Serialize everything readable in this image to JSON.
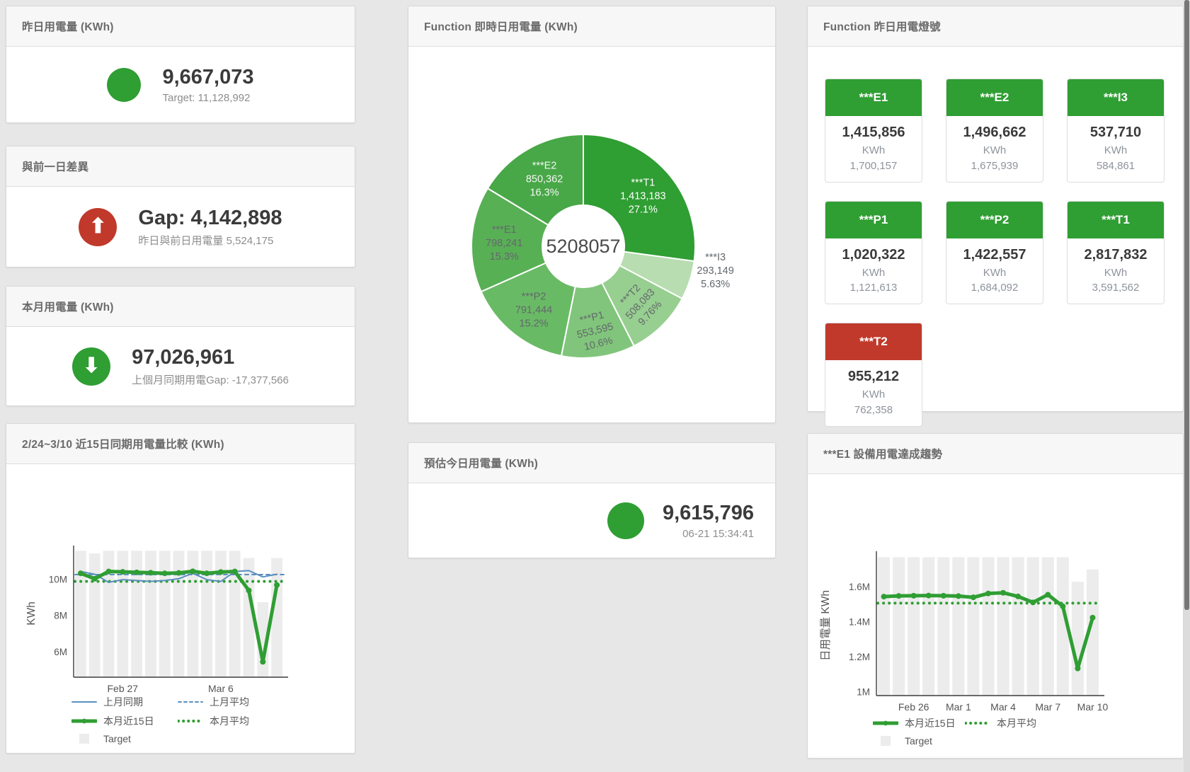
{
  "page": {
    "background": "#e7e7e7",
    "accent_green": "#2f9e33",
    "accent_red": "#c0392b",
    "accent_blue": "#5a8fc0",
    "target_bar_color": "#ececec"
  },
  "panels": {
    "yesterday": {
      "title": "昨日用電量 (KWh)",
      "value": "9,667,073",
      "subtitle": "Target: 11,128,992",
      "indicator_color": "#2f9e33"
    },
    "day_gap": {
      "title": "與前一日差異",
      "value": "Gap: 4,142,898",
      "subtitle": "昨日與前日用電量 5,524,175",
      "indicator_color": "#c0392b",
      "arrow_icon": "⬆"
    },
    "month": {
      "title": "本月用電量 (KWh)",
      "value": "97,026,961",
      "subtitle": "上個月同期用電Gap: -17,377,566",
      "indicator_color": "#2f9e33",
      "arrow_icon": "⬇"
    },
    "estimate": {
      "title": "預估今日用電量 (KWh)",
      "value": "9,615,796",
      "subtitle": "06-21 15:34:41",
      "indicator_color": "#2f9e33"
    },
    "lights": {
      "title": "Function 昨日用電燈號",
      "unit": "KWh",
      "tiles": [
        {
          "name": "***E1",
          "value": "1,415,856",
          "target": "1,700,157",
          "status_color": "#2f9e33"
        },
        {
          "name": "***E2",
          "value": "1,496,662",
          "target": "1,675,939",
          "status_color": "#2f9e33"
        },
        {
          "name": "***I3",
          "value": "537,710",
          "target": "584,861",
          "status_color": "#2f9e33"
        },
        {
          "name": "***P1",
          "value": "1,020,322",
          "target": "1,121,613",
          "status_color": "#2f9e33"
        },
        {
          "name": "***P2",
          "value": "1,422,557",
          "target": "1,684,092",
          "status_color": "#2f9e33"
        },
        {
          "name": "***T1",
          "value": "2,817,832",
          "target": "3,591,562",
          "status_color": "#2f9e33"
        },
        {
          "name": "***T2",
          "value": "955,212",
          "target": "762,358",
          "status_color": "#c0392b"
        }
      ]
    }
  },
  "chart_data": [
    {
      "id": "donut",
      "type": "pie",
      "title": "Function 即時日用電量 (KWh)",
      "center_label": "5208057",
      "slices": [
        {
          "name": "***T1",
          "value": 1413183,
          "value_text": "1,413,183",
          "percent": "27.1%",
          "color": "#2f9e33",
          "label_color": "#ffffff"
        },
        {
          "name": "***I3",
          "value": 293149,
          "value_text": "293,149",
          "percent": "5.63%",
          "color": "#b7ddb0",
          "label_color": "#63686c",
          "label_outside": true
        },
        {
          "name": "***T2",
          "value": 508083,
          "value_text": "508,083",
          "percent": "9.76%",
          "color": "#97cf90",
          "label_color": "#63686c",
          "label_rotate": -47
        },
        {
          "name": "***P1",
          "value": 553595,
          "value_text": "553,595",
          "percent": "10.6%",
          "color": "#80c57b",
          "label_color": "#63686c",
          "label_rotate": -14
        },
        {
          "name": "***P2",
          "value": 791444,
          "value_text": "791,444",
          "percent": "15.2%",
          "color": "#69ba65",
          "label_color": "#63686c"
        },
        {
          "name": "***E1",
          "value": 798241,
          "value_text": "798,241",
          "percent": "15.3%",
          "color": "#58b055",
          "label_color": "#63686c"
        },
        {
          "name": "***E2",
          "value": 850362,
          "value_text": "850,362",
          "percent": "16.3%",
          "color": "#48a747",
          "label_color": "#f4f7f4"
        }
      ]
    },
    {
      "id": "compare15",
      "type": "line",
      "title": "2/24~3/10 近15日同期用電量比較 (KWh)",
      "ylabel": "KWh",
      "categories": [
        "2/24",
        "2/25",
        "2/26",
        "2/27",
        "2/28",
        "3/1",
        "3/2",
        "3/3",
        "3/4",
        "3/5",
        "3/6",
        "3/7",
        "3/8",
        "3/9",
        "3/10"
      ],
      "ylim": [
        4600000,
        11650000
      ],
      "yticks": [
        {
          "v": 6000000,
          "label": "6M"
        },
        {
          "v": 8000000,
          "label": "8M"
        },
        {
          "v": 10000000,
          "label": "10M"
        }
      ],
      "xticks": [
        {
          "i": 3,
          "label": "Feb 27"
        },
        {
          "i": 10,
          "label": "Mar 6"
        }
      ],
      "series": [
        {
          "name": "Target",
          "type": "bar",
          "color": "#ececec",
          "values": [
            11600000,
            11450000,
            11600000,
            11600000,
            11600000,
            11600000,
            11600000,
            11600000,
            11600000,
            11600000,
            11600000,
            11600000,
            11200000,
            8750000,
            11200000
          ]
        },
        {
          "name": "上月平均",
          "type": "avg",
          "color": "#5a8fc0",
          "width": 2,
          "value": 10280000
        },
        {
          "name": "本月平均",
          "type": "avg",
          "color": "#2f9e33",
          "width": 4,
          "value": 9900000
        },
        {
          "name": "上月同期",
          "type": "line",
          "color": "#5a8fc0",
          "width": 2,
          "values": [
            10450000,
            10300000,
            9850000,
            10000000,
            9950000,
            9900000,
            9950000,
            10050000,
            10350000,
            10000000,
            9900000,
            10450000,
            10500000,
            10150000,
            10300000
          ]
        },
        {
          "name": "本月近15日",
          "type": "line",
          "color": "#2f9e33",
          "width": 5,
          "marker": true,
          "values": [
            10350000,
            10050000,
            10450000,
            10430000,
            10400000,
            10380000,
            10350000,
            10370000,
            10460000,
            10350000,
            10420000,
            10450000,
            9400000,
            5450000,
            9700000
          ]
        }
      ],
      "legend": [
        [
          "上月同期",
          "上月平均"
        ],
        [
          "本月近15日",
          "本月平均"
        ],
        [
          "Target"
        ]
      ]
    },
    {
      "id": "e1trend",
      "type": "line",
      "title": "***E1 設備用電達成趨勢",
      "ylabel": "日用電量 KWh",
      "categories": [
        "2/24",
        "2/25",
        "2/26",
        "2/27",
        "2/28",
        "3/1",
        "3/2",
        "3/3",
        "3/4",
        "3/5",
        "3/6",
        "3/7",
        "3/8",
        "3/9",
        "3/10"
      ],
      "ylim": [
        980000,
        1780000
      ],
      "yticks": [
        {
          "v": 1000000,
          "label": "1M"
        },
        {
          "v": 1200000,
          "label": "1.2M"
        },
        {
          "v": 1400000,
          "label": "1.4M"
        },
        {
          "v": 1600000,
          "label": "1.6M"
        }
      ],
      "xticks": [
        {
          "i": 2,
          "label": "Feb 26"
        },
        {
          "i": 5,
          "label": "Mar 1"
        },
        {
          "i": 8,
          "label": "Mar 4"
        },
        {
          "i": 11,
          "label": "Mar 7"
        },
        {
          "i": 14,
          "label": "Mar 10"
        }
      ],
      "series": [
        {
          "name": "Target",
          "type": "bar",
          "color": "#ececec",
          "values": [
            1770000,
            1770000,
            1770000,
            1770000,
            1770000,
            1770000,
            1770000,
            1770000,
            1770000,
            1770000,
            1770000,
            1770000,
            1770000,
            1630000,
            1700000
          ]
        },
        {
          "name": "本月平均",
          "type": "avg",
          "color": "#2f9e33",
          "width": 4,
          "value": 1508000
        },
        {
          "name": "本月近15日",
          "type": "line",
          "color": "#2f9e33",
          "width": 5,
          "marker": true,
          "values": [
            1545000,
            1549000,
            1550000,
            1551000,
            1550000,
            1548000,
            1541000,
            1563000,
            1567000,
            1546000,
            1512000,
            1556000,
            1490000,
            1135000,
            1425000
          ]
        }
      ],
      "legend": [
        [
          "本月近15日",
          "本月平均"
        ],
        [
          "Target"
        ]
      ]
    }
  ]
}
